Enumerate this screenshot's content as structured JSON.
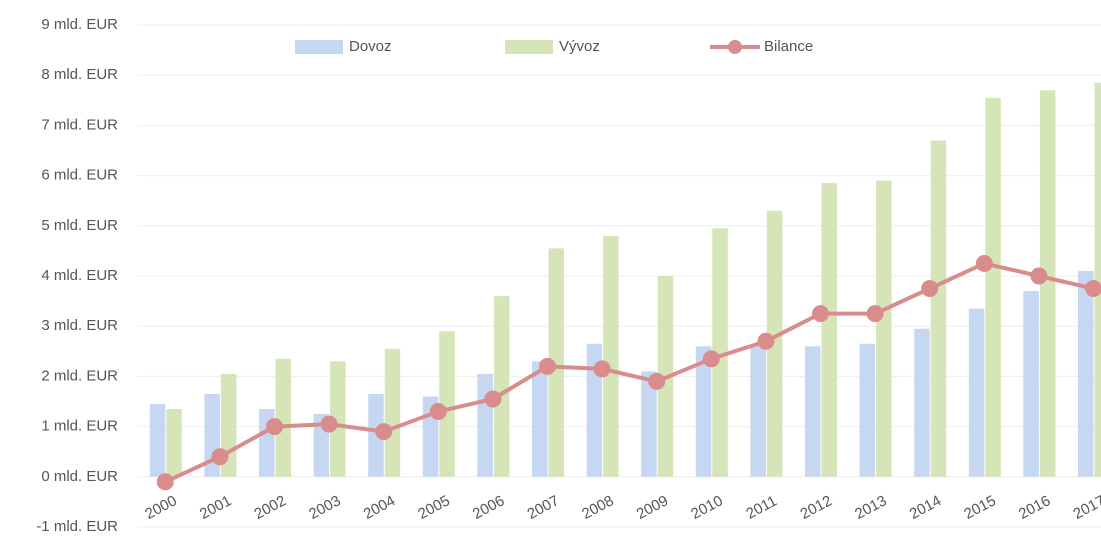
{
  "chart_data": {
    "type": "bar",
    "categories": [
      "2000",
      "2001",
      "2002",
      "2003",
      "2004",
      "2005",
      "2006",
      "2007",
      "2008",
      "2009",
      "2010",
      "2011",
      "2012",
      "2013",
      "2014",
      "2015",
      "2016",
      "2017"
    ],
    "series": [
      {
        "name": "Dovoz",
        "color": "#c5d7f1",
        "values": [
          1.45,
          1.65,
          1.35,
          1.25,
          1.65,
          1.6,
          2.05,
          2.3,
          2.65,
          2.1,
          2.6,
          2.6,
          2.6,
          2.65,
          2.95,
          3.35,
          3.7,
          4.1
        ]
      },
      {
        "name": "Vývoz",
        "color": "#d5e5b8",
        "values": [
          1.35,
          2.05,
          2.35,
          2.3,
          2.55,
          2.9,
          3.6,
          4.55,
          4.8,
          4.0,
          4.95,
          5.3,
          5.85,
          5.9,
          6.7,
          7.55,
          7.7,
          7.85
        ]
      },
      {
        "name": "Bilance",
        "color": "#d98c8c",
        "type": "line",
        "values": [
          -0.1,
          0.4,
          1.0,
          1.05,
          0.9,
          1.3,
          1.55,
          2.2,
          2.15,
          1.9,
          2.35,
          2.7,
          3.25,
          3.25,
          3.75,
          4.25,
          4.0,
          3.75
        ]
      }
    ],
    "ylim": [
      -1,
      9
    ],
    "yticks": [
      {
        "value": -1,
        "label": "-1 mld. EUR"
      },
      {
        "value": 0,
        "label": "0 mld. EUR"
      },
      {
        "value": 1,
        "label": "1 mld. EUR"
      },
      {
        "value": 2,
        "label": "2 mld. EUR"
      },
      {
        "value": 3,
        "label": "3 mld. EUR"
      },
      {
        "value": 4,
        "label": "4 mld. EUR"
      },
      {
        "value": 5,
        "label": "5 mld. EUR"
      },
      {
        "value": 6,
        "label": "6 mld. EUR"
      },
      {
        "value": 7,
        "label": "7 mld. EUR"
      },
      {
        "value": 8,
        "label": "8 mld. EUR"
      },
      {
        "value": 9,
        "label": "9 mld. EUR"
      }
    ],
    "grid": true,
    "legend": "top"
  }
}
